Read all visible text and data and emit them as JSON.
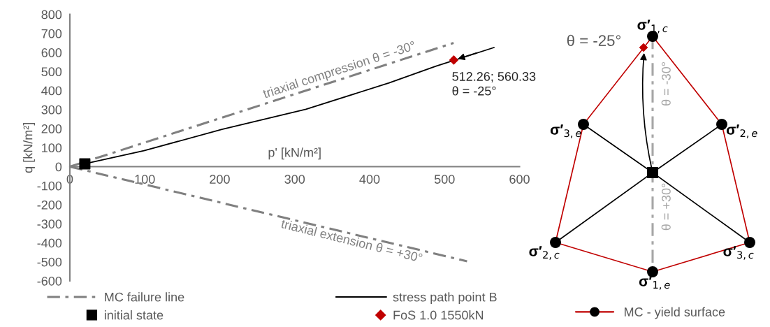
{
  "chart_data": [
    {
      "type": "line",
      "xlabel": "p' [kN/m²]",
      "ylabel": "q [kN/m²]",
      "xlim": [
        0,
        600
      ],
      "ylim": [
        -600,
        800
      ],
      "xticks": [
        0,
        100,
        200,
        300,
        400,
        500,
        600
      ],
      "yticks": [
        -600,
        -500,
        -400,
        -300,
        -200,
        -100,
        0,
        100,
        200,
        300,
        400,
        500,
        600,
        700,
        800
      ],
      "legend": "bottom",
      "series": [
        {
          "name": "MC failure line",
          "type": "line",
          "color": "#808080",
          "line_style": "dashdot",
          "x": [
            0,
            512
          ],
          "values": [
            0,
            650
          ]
        },
        {
          "name": "initial state",
          "type": "scatter",
          "color": "#000000",
          "marker": "square",
          "x": [
            20
          ],
          "values": [
            15
          ]
        },
        {
          "name": "stress path point B",
          "type": "line",
          "color": "#000000",
          "line_style": "solid",
          "x": [
            20,
            99,
            203,
            315,
            426,
            488,
            566
          ],
          "values": [
            15,
            84,
            196,
            302,
            440,
            527,
            626
          ]
        },
        {
          "name": "FoS 1.0 1550kN",
          "type": "scatter",
          "color": "#c00000",
          "marker": "diamond",
          "x": [
            512.26
          ],
          "values": [
            560.33
          ]
        },
        {
          "type": "line",
          "color": "#808080",
          "line_style": "dashdot",
          "x": [
            0,
            530
          ],
          "values": [
            0,
            -497
          ]
        }
      ],
      "annotations": [
        {
          "text": "512.26; 560.33\nθ = -25°",
          "x": 512.26,
          "y": 560.33
        },
        "triaxial compression θ = -30°",
        "triaxial extension θ = +30°"
      ]
    },
    {
      "type": "other",
      "legend": "bottom",
      "series": [
        {
          "name": "MC - yield surface",
          "color": "#c00000"
        }
      ],
      "annotations": [
        "θ = -25°",
        "θ = -30°",
        "θ = +30°",
        "σ′$_{1,c}$",
        "σ′$_{3,e}$",
        "σ′$_{2,e}$",
        "σ′$_{2,c}$",
        "σ′$_{3,c}$",
        "σ′$_{1,e}$"
      ]
    }
  ]
}
